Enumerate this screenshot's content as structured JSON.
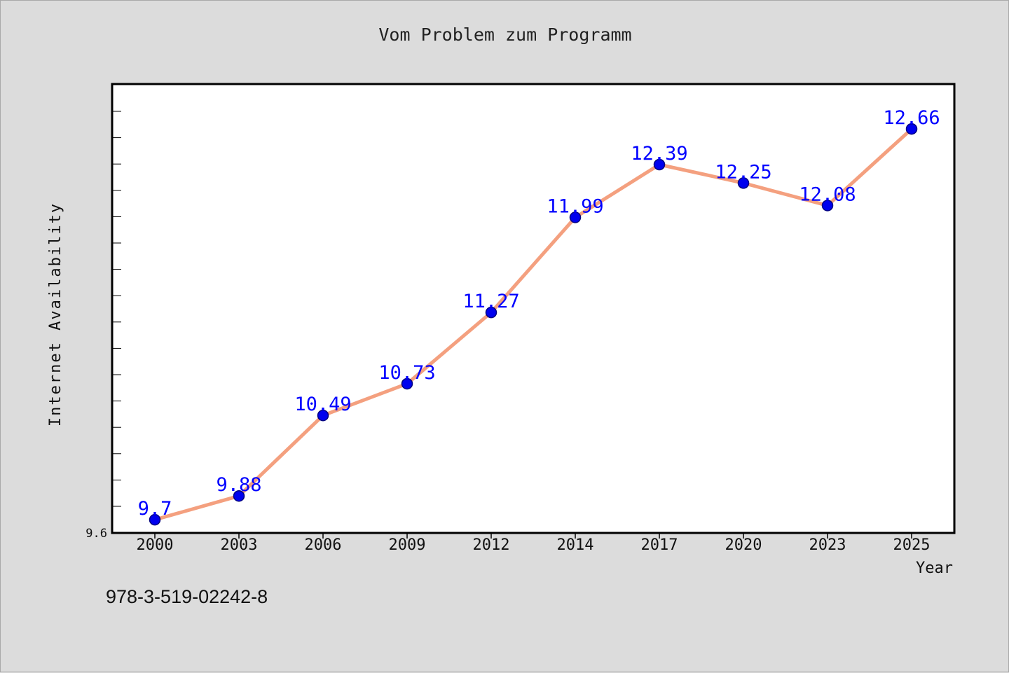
{
  "chart_data": {
    "type": "line",
    "title": "Vom Problem zum Programm",
    "xlabel": "Year",
    "ylabel": "Internet Availability",
    "categories": [
      "2000",
      "2003",
      "2006",
      "2009",
      "2012",
      "2014",
      "2017",
      "2020",
      "2023",
      "2025"
    ],
    "series": [
      {
        "values": [
          9.7,
          9.88,
          10.49,
          10.73,
          11.27,
          11.99,
          12.39,
          12.25,
          12.08,
          12.66
        ],
        "data_labels": [
          "9.7",
          "9.88",
          "10.49",
          "10.73",
          "11.27",
          "11.99",
          "12.39",
          "12.25",
          "12.08",
          "12.66"
        ]
      }
    ],
    "ylim": [
      9.6,
      13.0
    ],
    "y_tick_label": "9.6",
    "grid": false,
    "legend": "none",
    "colors": {
      "line": "#f4a07f",
      "marker": "#0000ee",
      "marker_edge": "#000080",
      "label": "#0000ff"
    }
  },
  "footer": {
    "isbn": "978-3-519-02242-8"
  }
}
